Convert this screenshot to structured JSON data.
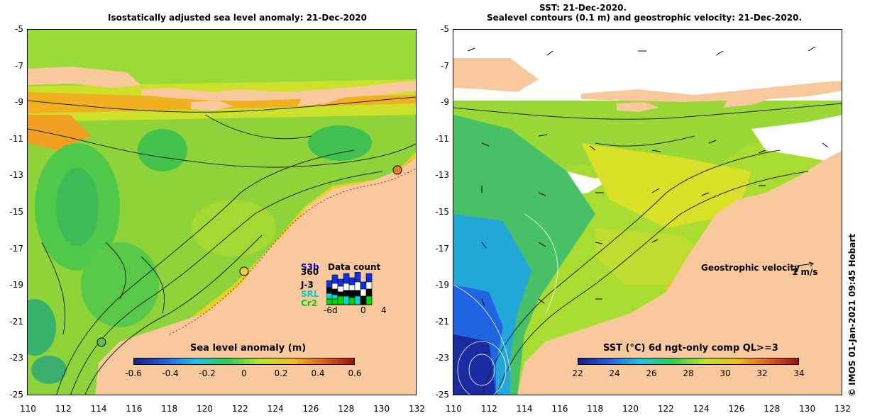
{
  "left_panel": {
    "title": "Isostatically adjusted sea level anomaly: 21-Dec-2020",
    "colorbar": {
      "title": "Sea level anomaly (m)",
      "labels": [
        "-0.6",
        "-0.4",
        "-0.2",
        "0",
        "0.2",
        "0.4",
        "0.6"
      ]
    },
    "data_count": {
      "title": "Data count",
      "satellites": [
        {
          "name": "S3b",
          "color": "#0000cc"
        },
        {
          "name": "S3b",
          "color": "#0000cc"
        },
        {
          "name": "360",
          "color": "#000000"
        },
        {
          "name": "J-3",
          "color": "#000000"
        },
        {
          "name": "SRL",
          "color": "#00cccc"
        },
        {
          "name": "Cr2",
          "color": "#00cc00"
        }
      ],
      "axis_labels": [
        "-6d",
        "0",
        "4"
      ]
    }
  },
  "right_panel": {
    "title_line1": "SST: 21-Dec-2020.",
    "title_line2": "Sealevel contours (0.1 m) and geostrophic velocity: 21-Dec-2020.",
    "colorbar": {
      "title": "SST (°C) 6d ngt-only comp QL>=3",
      "labels": [
        "22",
        "24",
        "26",
        "28",
        "30",
        "32",
        "34"
      ]
    },
    "velocity_legend": "Geostrophic velocity",
    "velocity_unit": "1 m/s"
  },
  "axes": {
    "x_ticks": [
      "110",
      "112",
      "114",
      "116",
      "118",
      "120",
      "122",
      "124",
      "126",
      "128",
      "130",
      "132"
    ],
    "y_ticks": [
      "-5",
      "-7",
      "-9",
      "-11",
      "-13",
      "-15",
      "-17",
      "-19",
      "-21",
      "-23",
      "-25"
    ]
  },
  "credit": "© IMOS 01-Jan-2021 09:45 Hobart",
  "colors": {
    "land": "#f9c99d",
    "no_data": "#ffffff",
    "ssh_ramp": [
      "#1a1a8c",
      "#1f64e0",
      "#22c3e6",
      "#32cc46",
      "#b8e62a",
      "#f0c020",
      "#e06418",
      "#9a1010"
    ],
    "sst_ramp": [
      "#1a1a8c",
      "#1f64e0",
      "#22c3e6",
      "#32cc46",
      "#b8e62a",
      "#f0c020",
      "#e06418",
      "#9a1010"
    ]
  }
}
